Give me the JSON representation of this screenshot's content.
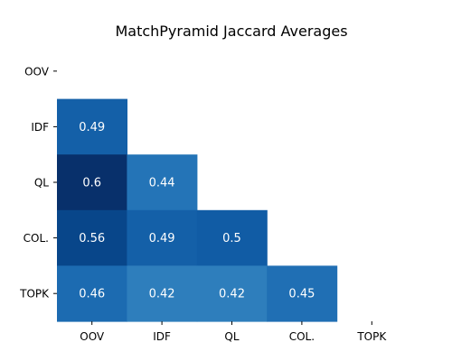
{
  "chart_data": {
    "type": "heatmap",
    "title": "MatchPyramid Jaccard Averages",
    "xlabel": "",
    "ylabel": "",
    "row_labels": [
      "OOV",
      "IDF",
      "QL",
      "COL.",
      "TOPK"
    ],
    "col_labels": [
      "OOV",
      "IDF",
      "QL",
      "COL.",
      "TOPK"
    ],
    "mask": "lower-triangle-only",
    "values": [
      [
        null,
        null,
        null,
        null,
        null
      ],
      [
        0.49,
        null,
        null,
        null,
        null
      ],
      [
        0.6,
        0.44,
        null,
        null,
        null
      ],
      [
        0.56,
        0.49,
        0.5,
        null,
        null
      ],
      [
        0.46,
        0.42,
        0.42,
        0.45,
        null
      ]
    ],
    "cell_text": [
      [
        "",
        "",
        "",
        "",
        ""
      ],
      [
        "0.49",
        "",
        "",
        "",
        ""
      ],
      [
        "0.6",
        "0.44",
        "",
        "",
        ""
      ],
      [
        "0.56",
        "0.49",
        "0.5",
        "",
        ""
      ],
      [
        "0.46",
        "0.42",
        "0.42",
        "0.45",
        ""
      ]
    ],
    "colormap": "Blues",
    "colors": {
      "0.42": "#2e7ebc",
      "0.44": "#2474b7",
      "0.45": "#206fb4",
      "0.46": "#1c6bb1",
      "0.49": "#1460a8",
      "0.5": "#115ca5",
      "0.56": "#08468a",
      "0.6": "#08306b"
    }
  }
}
